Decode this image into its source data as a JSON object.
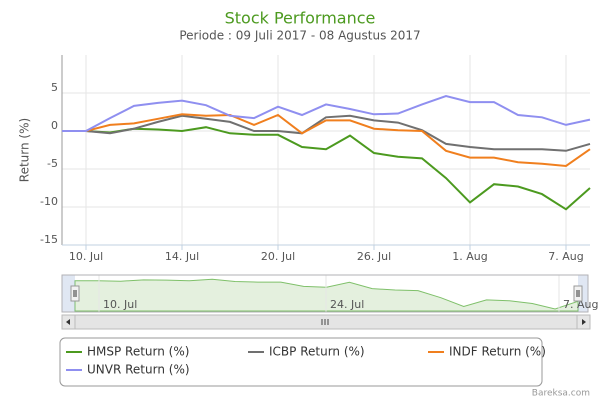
{
  "chart_data": {
    "type": "line",
    "title": "Stock Performance",
    "subtitle": "Periode : 09 Juli 2017 - 08 Agustus 2017",
    "y_label": "Return (%)",
    "categories": [
      null,
      "10. Jul",
      null,
      null,
      null,
      "14. Jul",
      null,
      null,
      null,
      "20. Jul",
      null,
      null,
      null,
      "26. Jul",
      null,
      null,
      null,
      "1. Aug",
      null,
      null,
      null,
      "7. Aug",
      null
    ],
    "series": [
      {
        "name": "HMSP Return (%)",
        "color": "#4c9a1f",
        "values": [
          0,
          0,
          -0.2,
          0.3,
          0.2,
          0,
          0.5,
          -0.3,
          -0.5,
          -0.5,
          -2.1,
          -2.4,
          -0.6,
          -2.9,
          -3.4,
          -3.6,
          -6.2,
          -9.4,
          -7.0,
          -7.3,
          -8.3,
          -10.3,
          -7.5
        ]
      },
      {
        "name": "ICBP Return (%)",
        "color": "#707070",
        "values": [
          0,
          0,
          -0.3,
          0.3,
          1.2,
          2.0,
          1.6,
          1.2,
          0,
          0,
          -0.3,
          1.8,
          2.0,
          1.4,
          1.1,
          0.1,
          -1.7,
          -2.1,
          -2.4,
          -2.4,
          -2.4,
          -2.6,
          -1.7
        ]
      },
      {
        "name": "INDF Return (%)",
        "color": "#f07f1e",
        "values": [
          0,
          0,
          0.8,
          1.0,
          1.6,
          2.2,
          2.0,
          2.1,
          0.8,
          2.1,
          -0.3,
          1.4,
          1.4,
          0.3,
          0.1,
          0,
          -2.6,
          -3.5,
          -3.5,
          -4.1,
          -4.3,
          -4.6,
          -2.4
        ]
      },
      {
        "name": "UNVR Return (%)",
        "color": "#8f8ff0",
        "values": [
          0,
          0,
          1.7,
          3.3,
          3.7,
          4.0,
          3.4,
          2.0,
          1.7,
          3.2,
          2.1,
          3.5,
          2.9,
          2.2,
          2.3,
          3.5,
          4.6,
          3.8,
          3.8,
          2.1,
          1.8,
          0.8,
          1.5
        ]
      }
    ],
    "ylim": [
      -15,
      10
    ],
    "yticks": [
      -15,
      -10,
      -5,
      0,
      5
    ],
    "grid": true,
    "navigator_labels": [
      "10. Jul",
      "24. Jul",
      "7. Aug"
    ],
    "credit": "Bareksa.com"
  }
}
